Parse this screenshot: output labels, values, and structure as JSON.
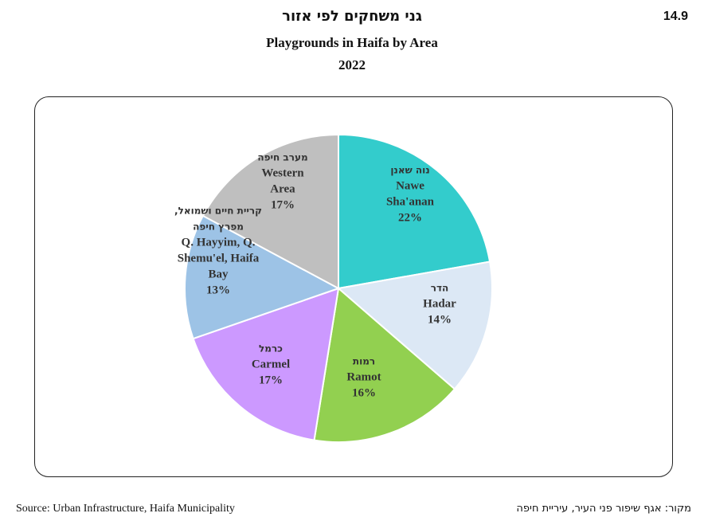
{
  "figure_number": "14.9",
  "title_he": "גני משחקים לפי אזור",
  "title_en": "Playgrounds in Haifa by Area",
  "year": "2022",
  "source_en": "Source: Urban Infrastructure, Haifa Municipality",
  "source_he": "מקור: אגף שיפור פני העיר, עיריית חיפה",
  "chart_data": {
    "type": "pie",
    "title": "Playgrounds in Haifa by Area",
    "slices": [
      {
        "name_he": "נוה שאנן",
        "name_en": [
          "Nawe",
          "Sha'anan"
        ],
        "label": "22%",
        "value": 22,
        "color": "#33CCCC"
      },
      {
        "name_he": "הדר",
        "name_en": [
          "Hadar"
        ],
        "label": "14%",
        "value": 14,
        "color": "#DCE8F5"
      },
      {
        "name_he": "רמות",
        "name_en": [
          "Ramot"
        ],
        "label": "16%",
        "value": 16,
        "color": "#92D050"
      },
      {
        "name_he": "כרמל",
        "name_en": [
          "Carmel"
        ],
        "label": "17%",
        "value": 17,
        "color": "#CC99FF"
      },
      {
        "name_he": "קריית חיים ושמואל, מפרץ חיפה",
        "name_he_lines": [
          "קריית חיים ושמואל,",
          "מפרץ חיפה"
        ],
        "name_en": [
          "Q. Hayyim, Q.",
          "Shemu'el, Haifa",
          "Bay"
        ],
        "label": "13%",
        "value": 13,
        "color": "#9DC3E6"
      },
      {
        "name_he": "מערב חיפה",
        "name_en": [
          "Western",
          "Area"
        ],
        "label": "17%",
        "value": 17,
        "color": "#BFBFBF"
      }
    ]
  }
}
